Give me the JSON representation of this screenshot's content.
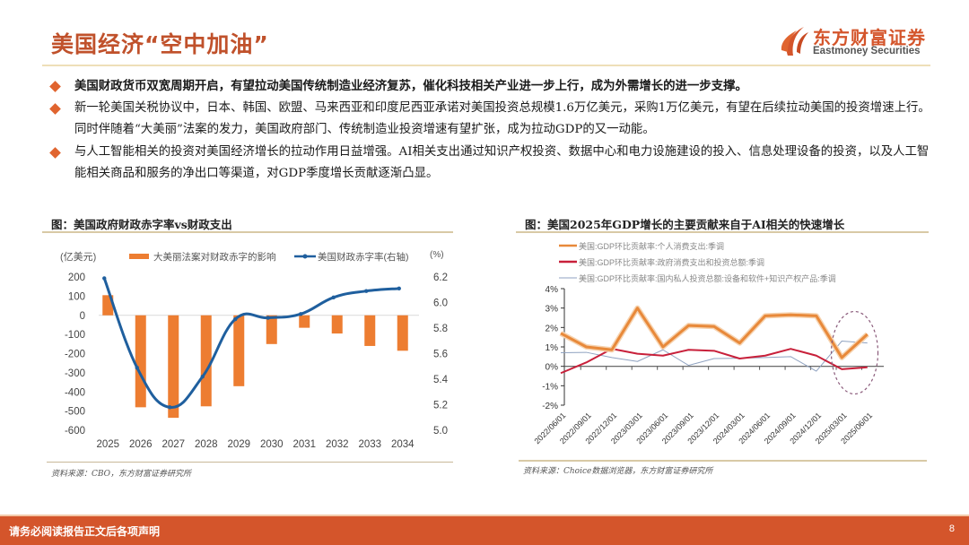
{
  "header": {
    "title": "美国经济“空中加油”",
    "logo_cn": "东方财富证券",
    "logo_en": "Eastmoney Securities"
  },
  "colors": {
    "brand": "#d4552b",
    "title": "#c0512b",
    "bar": "#ed7d31",
    "line_blue": "#1f5f9e",
    "gdp_consumption": "#e8893a",
    "gdp_government": "#c8203a",
    "gdp_ip": "#8fa2c0",
    "ellipse": "#8a5a7a"
  },
  "bullets": [
    {
      "text": "美国财政货币双宽周期开启，有望拉动美国传统制造业经济复苏，催化科技相关产业进一步上行，成为外需增长的进一步支撑。",
      "bold": true
    },
    {
      "text": "新一轮美国关税协议中，日本、韩国、欧盟、马来西亚和印度尼西亚承诺对美国投资总规模1.6万亿美元，采购1万亿美元，有望在后续拉动美国的投资增速上行。同时伴随着“大美丽”法案的发力，美国政府部门、传统制造业投资增速有望扩张，成为拉动GDP的又一动能。",
      "bold": false
    },
    {
      "text": "与人工智能相关的投资对美国经济增长的拉动作用日益增强。AI相关支出通过知识产权投资、数据中心和电力设施建设的投入、信息处理设备的投资，以及人工智能相关商品和服务的净出口等渠道，对GDP季度增长贡献逐渐凸显。",
      "bold": false
    }
  ],
  "figure_left": {
    "title": "图：美国政府财政赤字率vs财政支出",
    "source": "资料来源：CBO，东方财富证券研究所"
  },
  "figure_right": {
    "title": "图：美国2025年GDP增长的主要贡献来自于AI相关的快速增长",
    "source": "资料来源：Choice数据浏览器，东方财富证券研究所"
  },
  "chart_data": [
    {
      "type": "bar",
      "title": "图：美国政府财政赤字率vs财政支出",
      "categories": [
        "2025",
        "2026",
        "2027",
        "2028",
        "2029",
        "2030",
        "2031",
        "2032",
        "2033",
        "2034"
      ],
      "ylabel": "(亿美元)",
      "y2label": "(%)",
      "ylim": [
        -600,
        200
      ],
      "y2lim": [
        5.0,
        6.2
      ],
      "yticks": [
        "200",
        "100",
        "0",
        "-100",
        "-200",
        "-300",
        "-400",
        "-500",
        "-600"
      ],
      "y2ticks": [
        "6.2",
        "6.0",
        "5.8",
        "5.6",
        "5.4",
        "5.2",
        "5.0"
      ],
      "legend_position": "top",
      "series": [
        {
          "name": "大美丽法案对财政赤字的影响",
          "kind": "bar",
          "axis": "left",
          "values": [
            105,
            -480,
            -535,
            -475,
            -370,
            -150,
            -65,
            -95,
            -160,
            -185
          ]
        },
        {
          "name": "美国财政赤字率(右轴)",
          "kind": "line-smooth",
          "axis": "right",
          "values": [
            6.19,
            5.49,
            5.18,
            5.42,
            5.87,
            5.88,
            5.91,
            6.04,
            6.09,
            6.11
          ]
        }
      ]
    },
    {
      "type": "line",
      "title": "图：美国2025年GDP增长的主要贡献来自于AI相关的快速增长",
      "categories": [
        "2022/06/01",
        "2022/09/01",
        "2022/12/01",
        "2023/03/01",
        "2023/06/01",
        "2023/09/01",
        "2023/12/01",
        "2024/03/01",
        "2024/06/01",
        "2024/09/01",
        "2024/12/01",
        "2025/03/01",
        "2025/06/01"
      ],
      "ylim": [
        -2,
        4
      ],
      "yticks": [
        "4%",
        "3%",
        "2%",
        "1%",
        "0%",
        "-1%",
        "-2%"
      ],
      "legend_position": "top-left",
      "annotation": "dashed ellipse around 2025/03/01–2025/06/01",
      "series": [
        {
          "name": "美国:GDP环比贡献率:个人消费支出:季调",
          "values": [
            1.7,
            1.0,
            0.85,
            3.0,
            1.0,
            2.1,
            2.05,
            1.2,
            2.6,
            2.65,
            2.6,
            0.45,
            1.65
          ]
        },
        {
          "name": "美国:GDP环比贡献率:政府消费支出和投资总额:季调",
          "values": [
            -0.35,
            0.2,
            0.9,
            0.65,
            0.55,
            0.85,
            0.8,
            0.4,
            0.55,
            0.9,
            0.55,
            -0.15,
            -0.05
          ]
        },
        {
          "name": "美国:GDP环比贡献率:国内私人投资总额:设备和软件+知识产权产品:季调",
          "values": [
            0.7,
            0.72,
            0.45,
            0.25,
            0.85,
            0.05,
            0.4,
            0.42,
            0.45,
            0.5,
            -0.25,
            1.3,
            1.2
          ]
        }
      ]
    }
  ],
  "footer": {
    "disclaimer": "请务必阅读报告正文后各项声明",
    "page": "8"
  }
}
